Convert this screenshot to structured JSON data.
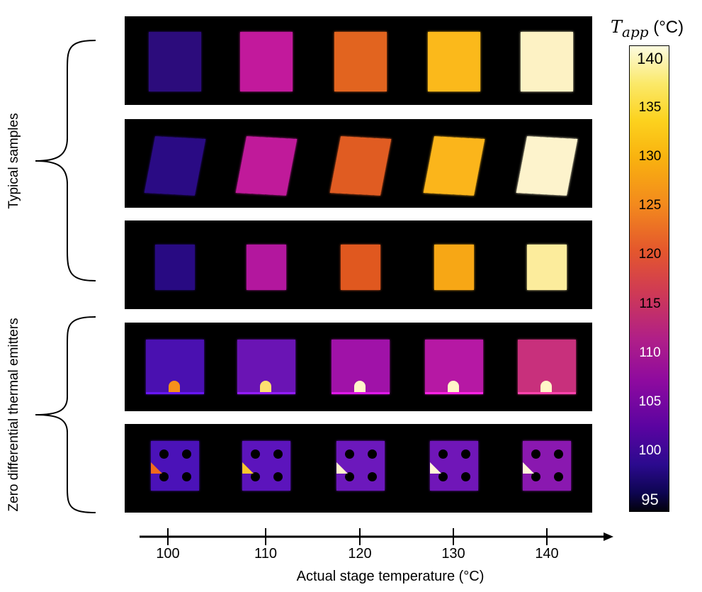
{
  "side_labels": {
    "top": "Typical samples",
    "bottom": "Zero differential thermal emitters"
  },
  "colorbar": {
    "title_symbol": "T",
    "title_subscript": "app",
    "title_unit": " (°C)",
    "ticks": [
      "140",
      "135",
      "130",
      "125",
      "120",
      "115",
      "110",
      "105",
      "100",
      "95"
    ],
    "range": [
      95,
      140
    ],
    "colormap": "inferno-like"
  },
  "x_axis": {
    "label": "Actual stage temperature (°C)",
    "ticks": [
      "100",
      "110",
      "120",
      "130",
      "140"
    ]
  },
  "rows": [
    {
      "group": "typical",
      "shape": "rect",
      "colors": [
        "#2c0c7c",
        "#c2199c",
        "#e2641f",
        "#fbb91b",
        "#fdf2c4"
      ]
    },
    {
      "group": "typical",
      "shape": "skew",
      "colors": [
        "#2a0b84",
        "#c01a9a",
        "#e05c22",
        "#fbb51b",
        "#fdf3cc"
      ]
    },
    {
      "group": "typical",
      "shape": "small",
      "colors": [
        "#280a82",
        "#b3179e",
        "#e0581f",
        "#f7a715",
        "#fcec9c"
      ]
    },
    {
      "group": "zero",
      "shape": "square-hotspot",
      "colors": [
        "#4a10b0",
        "#6a14b4",
        "#a012a8",
        "#b618a4",
        "#c8307c"
      ],
      "hot": [
        "#f6901a",
        "#fde070",
        "#fff6c8",
        "#fff6c8",
        "#fff6c8"
      ]
    },
    {
      "group": "zero",
      "shape": "holes-hotspot",
      "colors": [
        "#4b12b8",
        "#5c14bc",
        "#6c18bc",
        "#7016b8",
        "#8a18b0"
      ],
      "hot": [
        "#f26a1c",
        "#fbc82c",
        "#fff4cc",
        "#fff6d8",
        "#fff6d8"
      ]
    }
  ]
}
